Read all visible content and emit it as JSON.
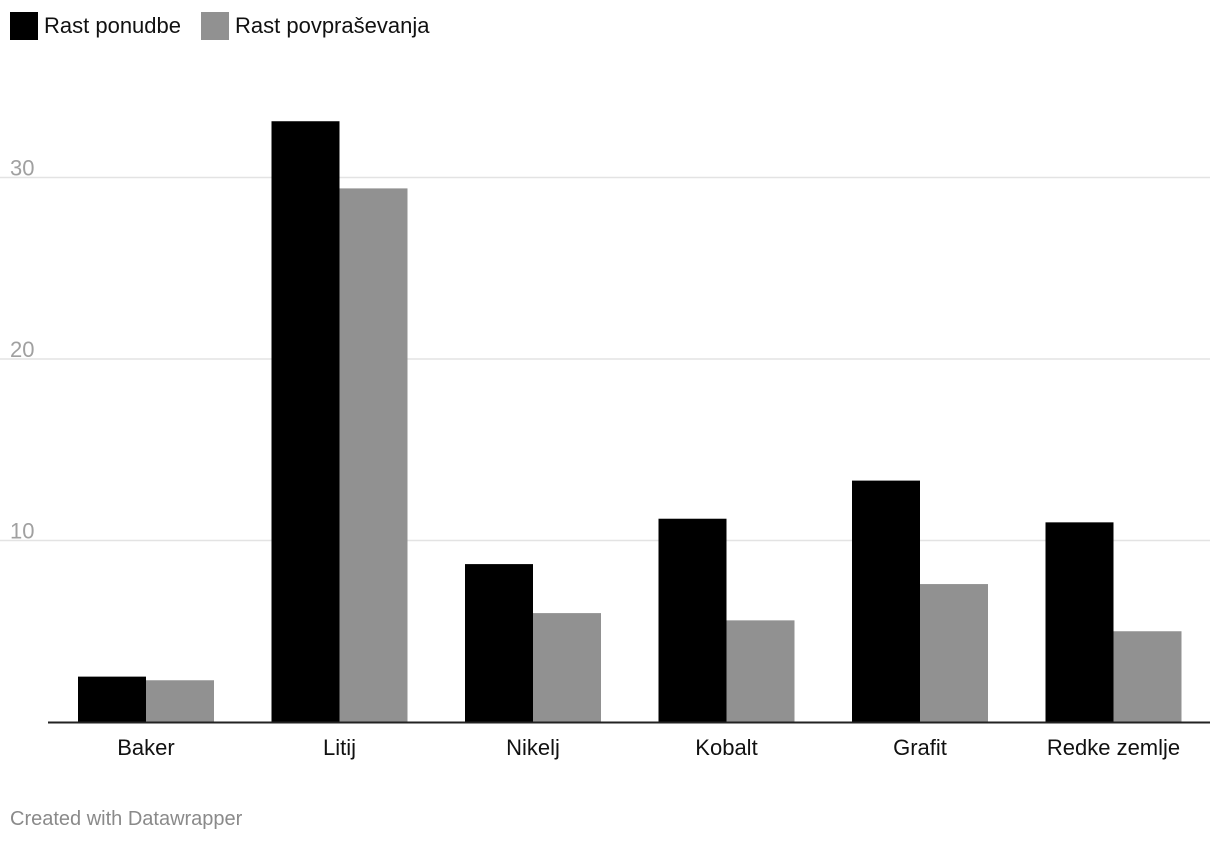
{
  "chart_data": {
    "type": "bar",
    "categories": [
      "Baker",
      "Litij",
      "Nikelj",
      "Kobalt",
      "Grafit",
      "Redke zemlje"
    ],
    "series": [
      {
        "name": "Rast ponudbe",
        "color": "#000000",
        "values": [
          2.5,
          33.1,
          8.7,
          11.2,
          13.3,
          11.0
        ]
      },
      {
        "name": "Rast povpraševanja",
        "color": "#919191",
        "values": [
          2.3,
          29.4,
          6.0,
          5.6,
          7.6,
          5.0
        ]
      }
    ],
    "yticks": [
      10,
      20,
      30
    ],
    "ylim": [
      0,
      35
    ],
    "grid": true,
    "legend_position": "top-left"
  },
  "footer": {
    "credit": "Created with Datawrapper"
  }
}
